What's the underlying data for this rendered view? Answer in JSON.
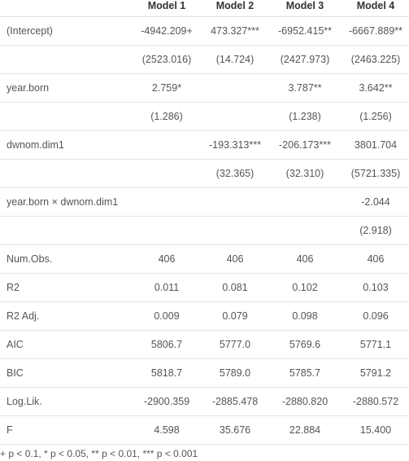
{
  "table": {
    "headers": [
      "",
      "Model 1",
      "Model 2",
      "Model 3",
      "Model 4"
    ],
    "rows": [
      {
        "label": "(Intercept)",
        "cells": [
          "-4942.209+",
          "473.327***",
          "-6952.415**",
          "-6667.889**"
        ]
      },
      {
        "label": "",
        "cells": [
          "(2523.016)",
          "(14.724)",
          "(2427.973)",
          "(2463.225)"
        ]
      },
      {
        "label": "year.born",
        "cells": [
          "2.759*",
          "",
          "3.787**",
          "3.642**"
        ]
      },
      {
        "label": "",
        "cells": [
          "(1.286)",
          "",
          "(1.238)",
          "(1.256)"
        ]
      },
      {
        "label": "dwnom.dim1",
        "cells": [
          "",
          "-193.313***",
          "-206.173***",
          "3801.704"
        ]
      },
      {
        "label": "",
        "cells": [
          "",
          "(32.365)",
          "(32.310)",
          "(5721.335)"
        ]
      },
      {
        "label": "year.born × dwnom.dim1",
        "cells": [
          "",
          "",
          "",
          "-2.044"
        ]
      },
      {
        "label": "",
        "cells": [
          "",
          "",
          "",
          "(2.918)"
        ]
      },
      {
        "label": "Num.Obs.",
        "cells": [
          "406",
          "406",
          "406",
          "406"
        ]
      },
      {
        "label": "R2",
        "cells": [
          "0.011",
          "0.081",
          "0.102",
          "0.103"
        ]
      },
      {
        "label": "R2 Adj.",
        "cells": [
          "0.009",
          "0.079",
          "0.098",
          "0.096"
        ]
      },
      {
        "label": "AIC",
        "cells": [
          "5806.7",
          "5777.0",
          "5769.6",
          "5771.1"
        ]
      },
      {
        "label": "BIC",
        "cells": [
          "5818.7",
          "5789.0",
          "5785.7",
          "5791.2"
        ]
      },
      {
        "label": "Log.Lik.",
        "cells": [
          "-2900.359",
          "-2885.478",
          "-2880.820",
          "-2880.572"
        ]
      },
      {
        "label": "F",
        "cells": [
          "4.598",
          "35.676",
          "22.884",
          "15.400"
        ]
      }
    ]
  },
  "footnote": "+ p < 0.1, * p < 0.05, ** p < 0.01, *** p < 0.001"
}
